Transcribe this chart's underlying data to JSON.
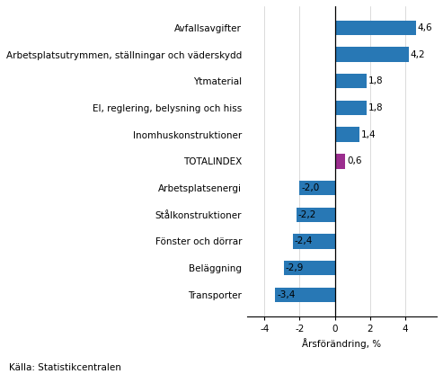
{
  "categories": [
    "Transporter",
    "Beläggning",
    "Fönster och dörrar",
    "Stålkonstruktioner",
    "Arbetsplatsenergi",
    "TOTALINDEX",
    "Inomhuskonstruktioner",
    "El, reglering, belysning och hiss",
    "Ytmaterial",
    "Arbetsplatsutrymmen, ställningar och väderskydd",
    "Avfallsavgifter"
  ],
  "values": [
    -3.4,
    -2.9,
    -2.4,
    -2.2,
    -2.0,
    0.6,
    1.4,
    1.8,
    1.8,
    4.2,
    4.6
  ],
  "blue_color": "#2878b5",
  "purple_color": "#9b2d8e",
  "xlabel": "Årsförändring, %",
  "xlim": [
    -5.0,
    5.8
  ],
  "xticks": [
    -4,
    -2,
    0,
    2,
    4
  ],
  "source": "Källa: Statistikcentralen",
  "label_fontsize": 7.5,
  "axis_fontsize": 7.5,
  "source_fontsize": 7.5,
  "bar_height": 0.55
}
